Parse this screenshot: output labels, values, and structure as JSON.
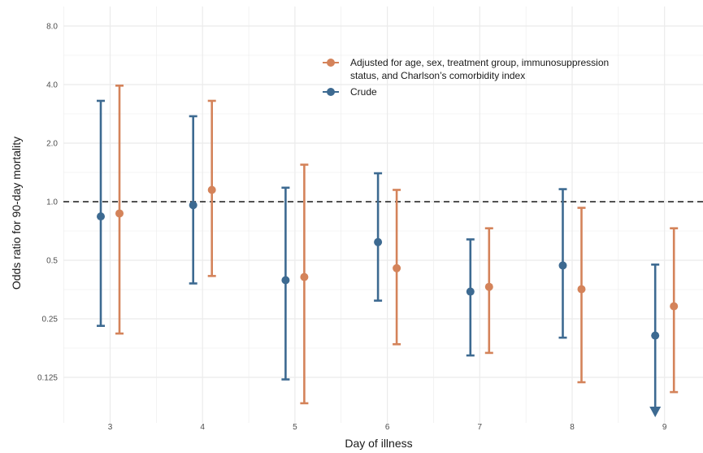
{
  "chart_data": {
    "type": "scatter",
    "title": "",
    "xlabel": "Day of illness",
    "ylabel": "Odds ratio for 90-day mortality",
    "y_scale": "log2",
    "ylim": [
      0.1,
      9.5
    ],
    "x_ticks": [
      3,
      4,
      5,
      6,
      7,
      8,
      9
    ],
    "x_tick_labels": [
      "3",
      "4",
      "5",
      "6",
      "7",
      "8",
      "9"
    ],
    "y_ticks": [
      0.125,
      0.25,
      0.5,
      1.0,
      2.0,
      4.0,
      8.0
    ],
    "y_tick_labels": [
      "0.125",
      "0.25",
      "0.5",
      "1.0",
      "2.0",
      "4.0",
      "8.0"
    ],
    "reference_line": 1.0,
    "grid": true,
    "legend_position": "top-right",
    "series": [
      {
        "name": "Adjusted for age, sex, treatment group, immunosuppression status, and Charlson’s comorbidity index",
        "legend_lines": [
          "Adjusted for age, sex, treatment group, immunosuppression",
          "status, and Charlson’s comorbidity index"
        ],
        "color": "#d4835a",
        "points": [
          {
            "day": 3,
            "or": 0.87,
            "lower": 0.21,
            "upper": 3.95
          },
          {
            "day": 4,
            "or": 1.15,
            "lower": 0.415,
            "upper": 3.3
          },
          {
            "day": 5,
            "or": 0.41,
            "lower": 0.092,
            "upper": 1.55
          },
          {
            "day": 6,
            "or": 0.455,
            "lower": 0.185,
            "upper": 1.15
          },
          {
            "day": 7,
            "or": 0.365,
            "lower": 0.167,
            "upper": 0.73
          },
          {
            "day": 8,
            "or": 0.355,
            "lower": 0.118,
            "upper": 0.93
          },
          {
            "day": 9,
            "or": 0.29,
            "lower": 0.105,
            "upper": 0.73
          }
        ]
      },
      {
        "name": "Crude",
        "legend_lines": [
          "Crude"
        ],
        "color": "#3d6a91",
        "points": [
          {
            "day": 3,
            "or": 0.84,
            "lower": 0.23,
            "upper": 3.3
          },
          {
            "day": 4,
            "or": 0.96,
            "lower": 0.38,
            "upper": 2.75
          },
          {
            "day": 5,
            "or": 0.395,
            "lower": 0.122,
            "upper": 1.18
          },
          {
            "day": 6,
            "or": 0.62,
            "lower": 0.31,
            "upper": 1.4
          },
          {
            "day": 7,
            "or": 0.345,
            "lower": 0.162,
            "upper": 0.64
          },
          {
            "day": 8,
            "or": 0.47,
            "lower": 0.2,
            "upper": 1.16
          },
          {
            "day": 9,
            "or": 0.205,
            "lower": 0.1,
            "upper": 0.475,
            "lower_truncated": true
          }
        ]
      }
    ]
  }
}
